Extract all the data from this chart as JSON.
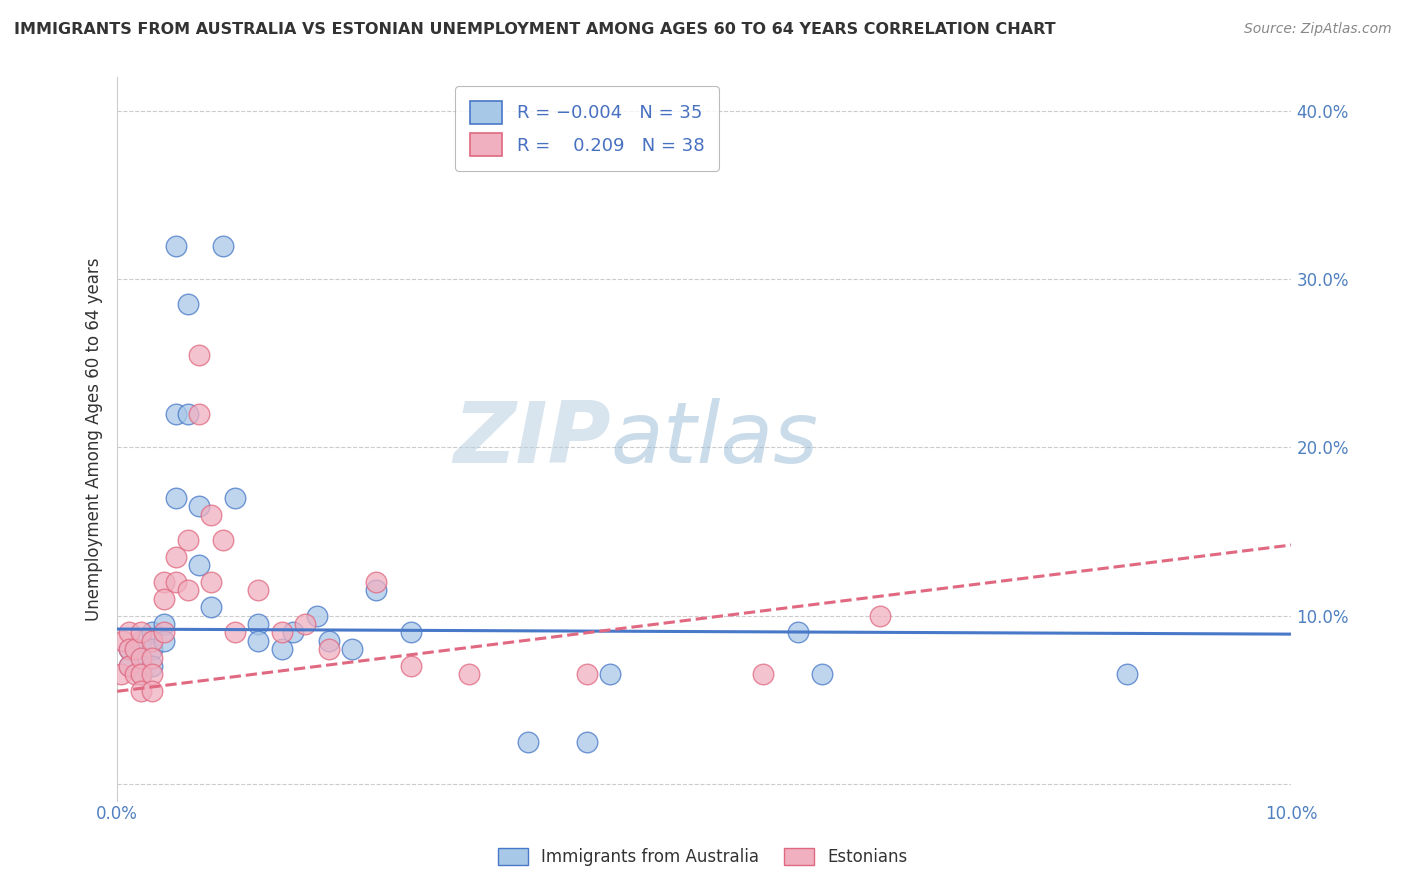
{
  "title": "IMMIGRANTS FROM AUSTRALIA VS ESTONIAN UNEMPLOYMENT AMONG AGES 60 TO 64 YEARS CORRELATION CHART",
  "source": "Source: ZipAtlas.com",
  "ylabel": "Unemployment Among Ages 60 to 64 years",
  "xlim": [
    0.0,
    0.1
  ],
  "ylim": [
    -0.01,
    0.42
  ],
  "yticks": [
    0.0,
    0.1,
    0.2,
    0.3,
    0.4
  ],
  "ytick_labels": [
    "",
    "10.0%",
    "20.0%",
    "30.0%",
    "40.0%"
  ],
  "xticks": [
    0.0,
    0.02,
    0.04,
    0.06,
    0.08,
    0.1
  ],
  "xtick_labels": [
    "0.0%",
    "",
    "",
    "",
    "",
    "10.0%"
  ],
  "color_blue": "#a8c8e8",
  "color_pink": "#f0b0c0",
  "color_blue_line": "#4878c8",
  "color_pink_line": "#e06880",
  "watermark_zip": "ZIP",
  "watermark_atlas": "atlas",
  "blue_scatter_x": [
    0.001,
    0.001,
    0.002,
    0.002,
    0.002,
    0.003,
    0.003,
    0.003,
    0.004,
    0.004,
    0.005,
    0.005,
    0.005,
    0.006,
    0.006,
    0.007,
    0.007,
    0.008,
    0.009,
    0.01,
    0.012,
    0.012,
    0.014,
    0.015,
    0.017,
    0.018,
    0.02,
    0.022,
    0.025,
    0.035,
    0.04,
    0.042,
    0.058,
    0.06,
    0.086
  ],
  "blue_scatter_y": [
    0.08,
    0.07,
    0.085,
    0.075,
    0.065,
    0.09,
    0.08,
    0.07,
    0.095,
    0.085,
    0.32,
    0.22,
    0.17,
    0.285,
    0.22,
    0.165,
    0.13,
    0.105,
    0.32,
    0.17,
    0.095,
    0.085,
    0.08,
    0.09,
    0.1,
    0.085,
    0.08,
    0.115,
    0.09,
    0.025,
    0.025,
    0.065,
    0.09,
    0.065,
    0.065
  ],
  "pink_scatter_x": [
    0.0003,
    0.0005,
    0.001,
    0.001,
    0.001,
    0.0015,
    0.0015,
    0.002,
    0.002,
    0.002,
    0.002,
    0.003,
    0.003,
    0.003,
    0.003,
    0.004,
    0.004,
    0.004,
    0.005,
    0.005,
    0.006,
    0.006,
    0.007,
    0.007,
    0.008,
    0.008,
    0.009,
    0.01,
    0.012,
    0.014,
    0.016,
    0.018,
    0.022,
    0.025,
    0.03,
    0.04,
    0.055,
    0.065
  ],
  "pink_scatter_y": [
    0.065,
    0.085,
    0.09,
    0.08,
    0.07,
    0.08,
    0.065,
    0.09,
    0.075,
    0.065,
    0.055,
    0.085,
    0.075,
    0.065,
    0.055,
    0.12,
    0.11,
    0.09,
    0.135,
    0.12,
    0.145,
    0.115,
    0.255,
    0.22,
    0.16,
    0.12,
    0.145,
    0.09,
    0.115,
    0.09,
    0.095,
    0.08,
    0.12,
    0.07,
    0.065,
    0.065,
    0.065,
    0.1
  ],
  "blue_trend_x": [
    0.0,
    0.1
  ],
  "blue_trend_y": [
    0.092,
    0.089
  ],
  "pink_trend_x": [
    0.0,
    0.1
  ],
  "pink_trend_y": [
    0.055,
    0.142
  ],
  "background_color": "#ffffff",
  "grid_color": "#cccccc"
}
